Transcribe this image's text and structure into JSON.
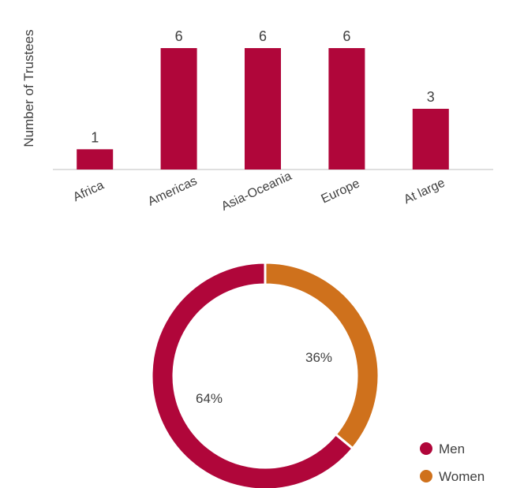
{
  "chart_data": [
    {
      "type": "bar",
      "categories": [
        "Africa",
        "Americas",
        "Asia-Oceania",
        "Europe",
        "At large"
      ],
      "values": [
        1,
        6,
        6,
        6,
        3
      ],
      "ylabel": "Number of Trustees",
      "ylim": [
        0,
        6
      ],
      "grid": false,
      "color": "#b0063a"
    },
    {
      "type": "pie",
      "donut": true,
      "labels": [
        "Men",
        "Women"
      ],
      "values": [
        64,
        36
      ],
      "value_labels": [
        "64%",
        "36%"
      ],
      "colors": [
        "#b0063a",
        "#cf711c"
      ],
      "legend": "bottom-right"
    }
  ]
}
